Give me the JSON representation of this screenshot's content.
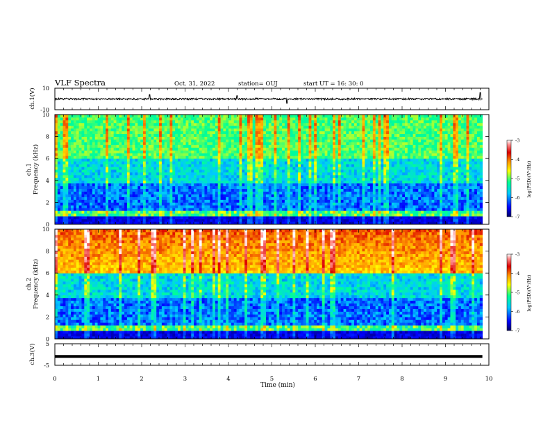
{
  "header": {
    "title": "VLF Spectra",
    "date": "Oct. 31, 2022",
    "station": "station= OUJ",
    "start": "start UT =   16: 30: 0"
  },
  "colors": {
    "background": "#ffffff",
    "trace": "#000000",
    "colormap": [
      "#000066",
      "#0000ff",
      "#00c8ff",
      "#00ff96",
      "#ffff00",
      "#ff9600",
      "#dc0000",
      "#ff8c8c",
      "#ffffff"
    ]
  },
  "chart_data": [
    {
      "type": "line",
      "id": "ch1-waveform",
      "ylabel": "ch.1(V)",
      "ylim": [
        -10,
        10
      ],
      "yticklabels": [
        "10",
        "-10"
      ],
      "xlim": [
        0,
        10
      ],
      "baseline_volts": 0,
      "spikes": [
        {
          "x": 2.18,
          "y": 4
        },
        {
          "x": 4.2,
          "y": 3
        },
        {
          "x": 5.35,
          "y": -4
        },
        {
          "x": 9.8,
          "y": 6
        }
      ]
    },
    {
      "type": "heatmap",
      "id": "ch1-spectrogram",
      "ylabel": "ch.1\nFrequency (kHz)",
      "ylim": [
        0,
        10
      ],
      "yticks": [
        0,
        2,
        4,
        6,
        8,
        10
      ],
      "xlim": [
        0,
        9.85
      ],
      "colorbar": {
        "label": "log(PSD)(V²/Hz)",
        "range": [
          -7,
          -3
        ],
        "ticks": [
          -3,
          -4,
          -5,
          -6,
          -7
        ]
      }
    },
    {
      "type": "heatmap",
      "id": "ch2-spectrogram",
      "ylabel": "ch.2\nFrequency (kHz)",
      "ylim": [
        0,
        10
      ],
      "yticks": [
        0,
        2,
        4,
        6,
        8,
        10
      ],
      "xlim": [
        0,
        9.85
      ],
      "colorbar": {
        "label": "log(PSD)(V²/Hz)",
        "range": [
          -7,
          -3
        ],
        "ticks": [
          -3,
          -4,
          -5,
          -6,
          -7
        ]
      }
    },
    {
      "type": "line",
      "id": "ch3-waveform",
      "ylabel": "ch.3(V)",
      "ylim": [
        -5,
        5
      ],
      "yticklabels": [
        "5",
        "-5"
      ],
      "xlim": [
        0,
        10
      ],
      "baseline_volts": -0.9
    }
  ],
  "xaxis": {
    "label": "Time (min)",
    "ticks": [
      "0",
      "1",
      "2",
      "3",
      "4",
      "5",
      "6",
      "7",
      "8",
      "9",
      "10"
    ]
  }
}
